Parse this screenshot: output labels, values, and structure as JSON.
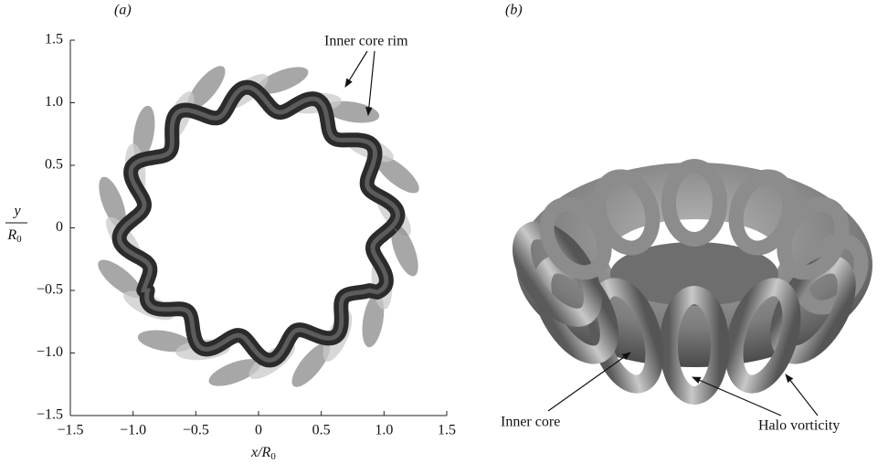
{
  "panels": [
    {
      "label": "(a)",
      "xlabel": {
        "main": "x/R",
        "sub": "0"
      },
      "ylabel": {
        "numerator": "y",
        "denominator": "R",
        "sub": "0"
      },
      "xlim": [
        -1.5,
        1.5
      ],
      "ylim": [
        -1.5,
        1.5
      ],
      "xticks": [
        {
          "value": -1.5,
          "label": "−1.5"
        },
        {
          "value": -1.0,
          "label": "−1.0"
        },
        {
          "value": -0.5,
          "label": "−0.5"
        },
        0,
        {
          "value": 0.5,
          "label": "0.5"
        },
        {
          "value": 1.0,
          "label": "1.0"
        },
        {
          "value": 1.5,
          "label": "1.5"
        }
      ],
      "yticks": [
        {
          "value": -1.5,
          "label": "−1.5"
        },
        {
          "value": -1.0,
          "label": "−1.0"
        },
        {
          "value": -0.5,
          "label": "−0.5"
        },
        0,
        {
          "value": 0.5,
          "label": "0.5"
        },
        {
          "value": 1.0,
          "label": "1.0"
        },
        {
          "value": 1.5,
          "label": "1.5"
        }
      ],
      "annotations": [
        "Inner core rim"
      ]
    },
    {
      "label": "(b)",
      "annotations": [
        "Inner core",
        "Halo vorticity"
      ]
    }
  ]
}
